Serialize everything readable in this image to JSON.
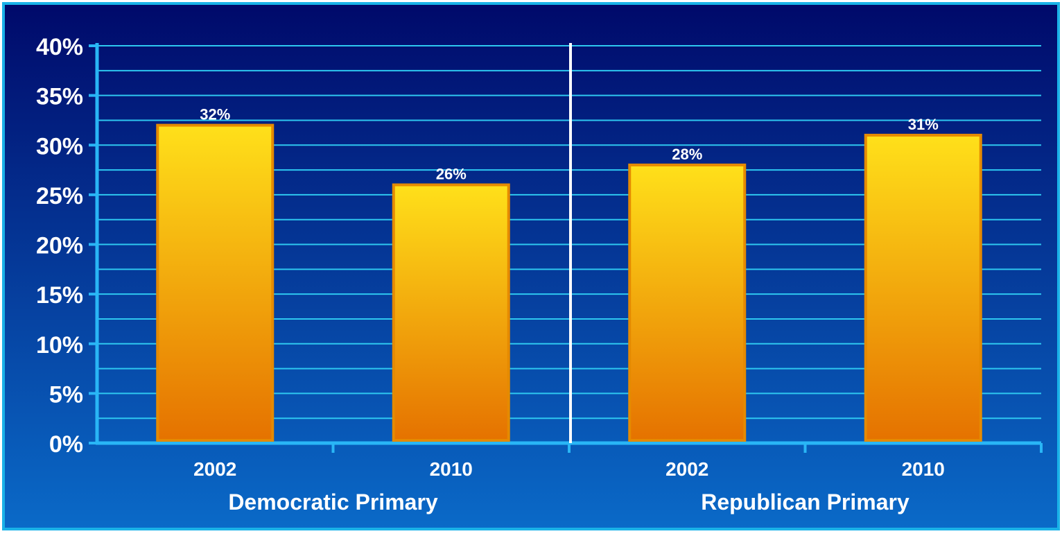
{
  "chart_data": {
    "type": "bar",
    "groups": [
      {
        "label": "Democratic Primary",
        "categories": [
          "2002",
          "2010"
        ],
        "values": [
          32,
          26
        ],
        "value_labels": [
          "32%",
          "26%"
        ]
      },
      {
        "label": "Republican Primary",
        "categories": [
          "2002",
          "2010"
        ],
        "values": [
          28,
          31
        ],
        "value_labels": [
          "28%",
          "31%"
        ]
      }
    ],
    "ylim": [
      0,
      40
    ],
    "yticks": [
      0,
      5,
      10,
      15,
      20,
      25,
      30,
      35,
      40
    ],
    "ytick_labels": [
      "0%",
      "5%",
      "10%",
      "15%",
      "20%",
      "25%",
      "30%",
      "35%",
      "40%"
    ],
    "grid": true,
    "title": "",
    "xlabel": "",
    "ylabel": ""
  },
  "colors": {
    "background_top": "#00096a",
    "background_bottom": "#0a6ac8",
    "border": "#1ab2e8",
    "gridline": "#2ec8f0",
    "axis": "#29b6f6",
    "divider": "#ffffff",
    "bar_top": "#ffe01a",
    "bar_bottom": "#e57200",
    "bar_outline": "#e58a00",
    "text": "#ffffff"
  }
}
